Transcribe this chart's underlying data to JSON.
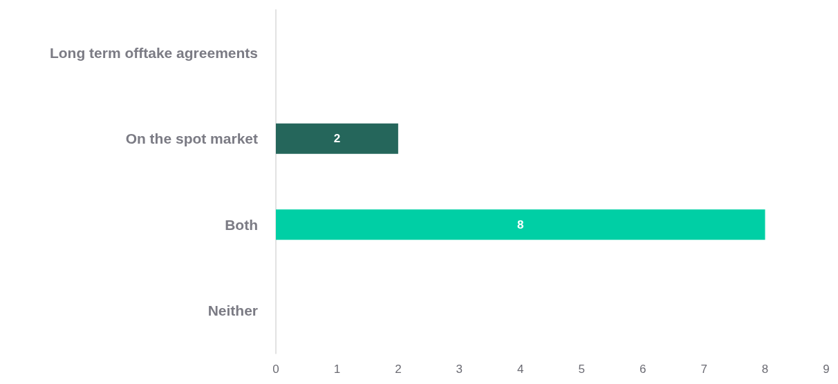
{
  "chart_data": {
    "type": "bar",
    "orientation": "horizontal",
    "categories": [
      "Long term offtake agreements",
      "On the spot market",
      "Both",
      "Neither"
    ],
    "values": [
      null,
      2,
      8,
      null
    ],
    "colors": [
      null,
      "#25665b",
      "#00cfa5",
      null
    ],
    "value_labels": [
      null,
      "2",
      "8",
      null
    ],
    "xlim": [
      0,
      9
    ],
    "xticks": [
      0,
      1,
      2,
      3,
      4,
      5,
      6,
      7,
      8,
      9
    ],
    "grid": false
  }
}
